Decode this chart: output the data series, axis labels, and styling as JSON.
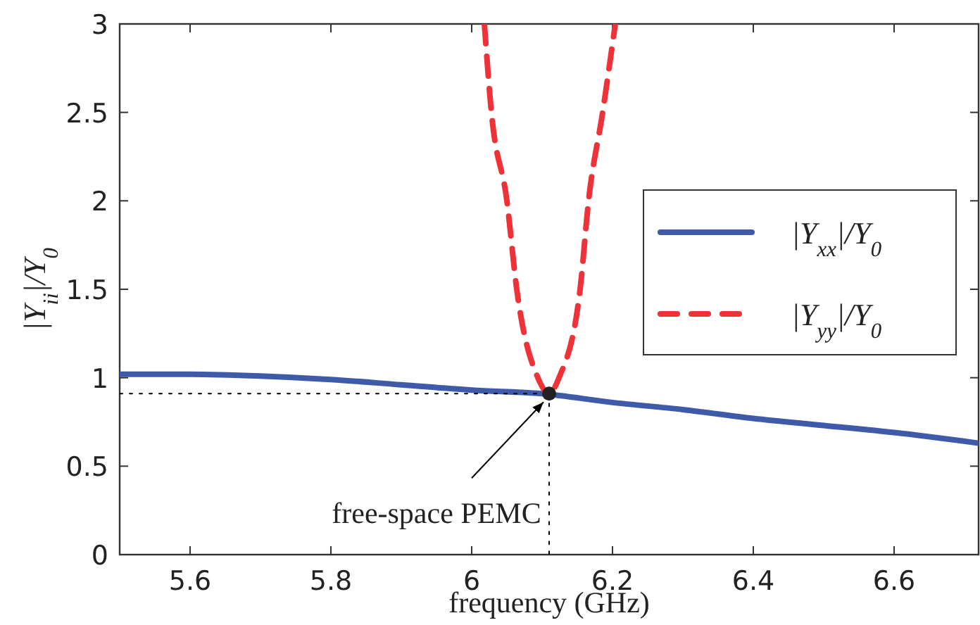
{
  "chart_data": {
    "type": "line",
    "xlabel": "frequency (GHz)",
    "ylabel": "|Y$_{ii}$|/Y$_{0}$",
    "xlim": [
      5.5,
      6.72
    ],
    "xticks": [
      5.6,
      5.8,
      6,
      6.2,
      6.4,
      6.6
    ],
    "ylim": [
      0,
      3
    ],
    "yticks": [
      0,
      0.5,
      1,
      1.5,
      2,
      2.5,
      3
    ],
    "legend": "right",
    "grid": false,
    "line_style": "solid",
    "series": [
      {
        "name": "|Y$_{xx}$|/Y$_{0}$",
        "color": "#3f5aa8",
        "x": [
          5.5,
          5.6,
          5.7,
          5.8,
          5.9,
          6.0,
          6.1,
          6.2,
          6.3,
          6.4,
          6.5,
          6.6,
          6.72
        ],
        "values": [
          1.02,
          1.02,
          1.01,
          0.99,
          0.96,
          0.93,
          0.91,
          0.86,
          0.82,
          0.77,
          0.73,
          0.69,
          0.63
        ]
      },
      {
        "name": "|Y$_{yy}$|/Y$_{0}$",
        "color": "#ee3338",
        "line_style": "dashed",
        "x": [
          6.018,
          6.028,
          6.05,
          6.064,
          6.094,
          6.11,
          6.124,
          6.154,
          6.166,
          6.186,
          6.204
        ],
        "values": [
          3,
          2.5,
          2,
          1.5,
          1,
          0.91,
          1,
          1.5,
          2,
          2.5,
          3
        ]
      },
      {
        "color": "#000000",
        "line_style": "dotted",
        "x": [
          5.5,
          6.11
        ],
        "values": [
          0.91,
          0.91
        ]
      },
      {
        "color": "#000000",
        "line_style": "dotted",
        "x": [
          6.11,
          6.11
        ],
        "values": [
          0.91,
          0
        ]
      },
      {
        "type": "scatter",
        "color": "#222222",
        "marker": "circle",
        "x": [
          6.11
        ],
        "values": [
          0.91
        ]
      }
    ],
    "annotations": [
      {
        "text": "free-space PEMC",
        "x": 6.11,
        "y": 0.91
      }
    ]
  }
}
